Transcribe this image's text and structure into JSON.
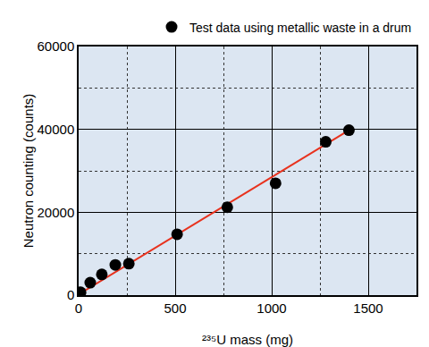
{
  "chart_data": {
    "type": "scatter",
    "x_label": "²³⁵U mass (mg)",
    "y_label": "Neutron counting (counts)",
    "series": [
      {
        "name": "Test data using metallic waste in a drum",
        "type": "scatter",
        "marker": "circle",
        "color": "#000000",
        "x": [
          10,
          60,
          120,
          190,
          260,
          510,
          770,
          1020,
          1280,
          1400
        ],
        "values": [
          700,
          3000,
          5000,
          7300,
          7600,
          14700,
          21200,
          27000,
          37000,
          39800
        ]
      },
      {
        "type": "line",
        "line_style": "solid",
        "color": "#e8321e",
        "x": [
          0,
          1400
        ],
        "values": [
          200,
          39800
        ]
      }
    ],
    "xlim": [
      0,
      1750
    ],
    "xticks": [
      0,
      500,
      1000,
      1500
    ],
    "ylim": [
      0,
      60000
    ],
    "yticks": [
      0,
      20000,
      40000,
      60000
    ],
    "grid": true,
    "legend": "top"
  }
}
